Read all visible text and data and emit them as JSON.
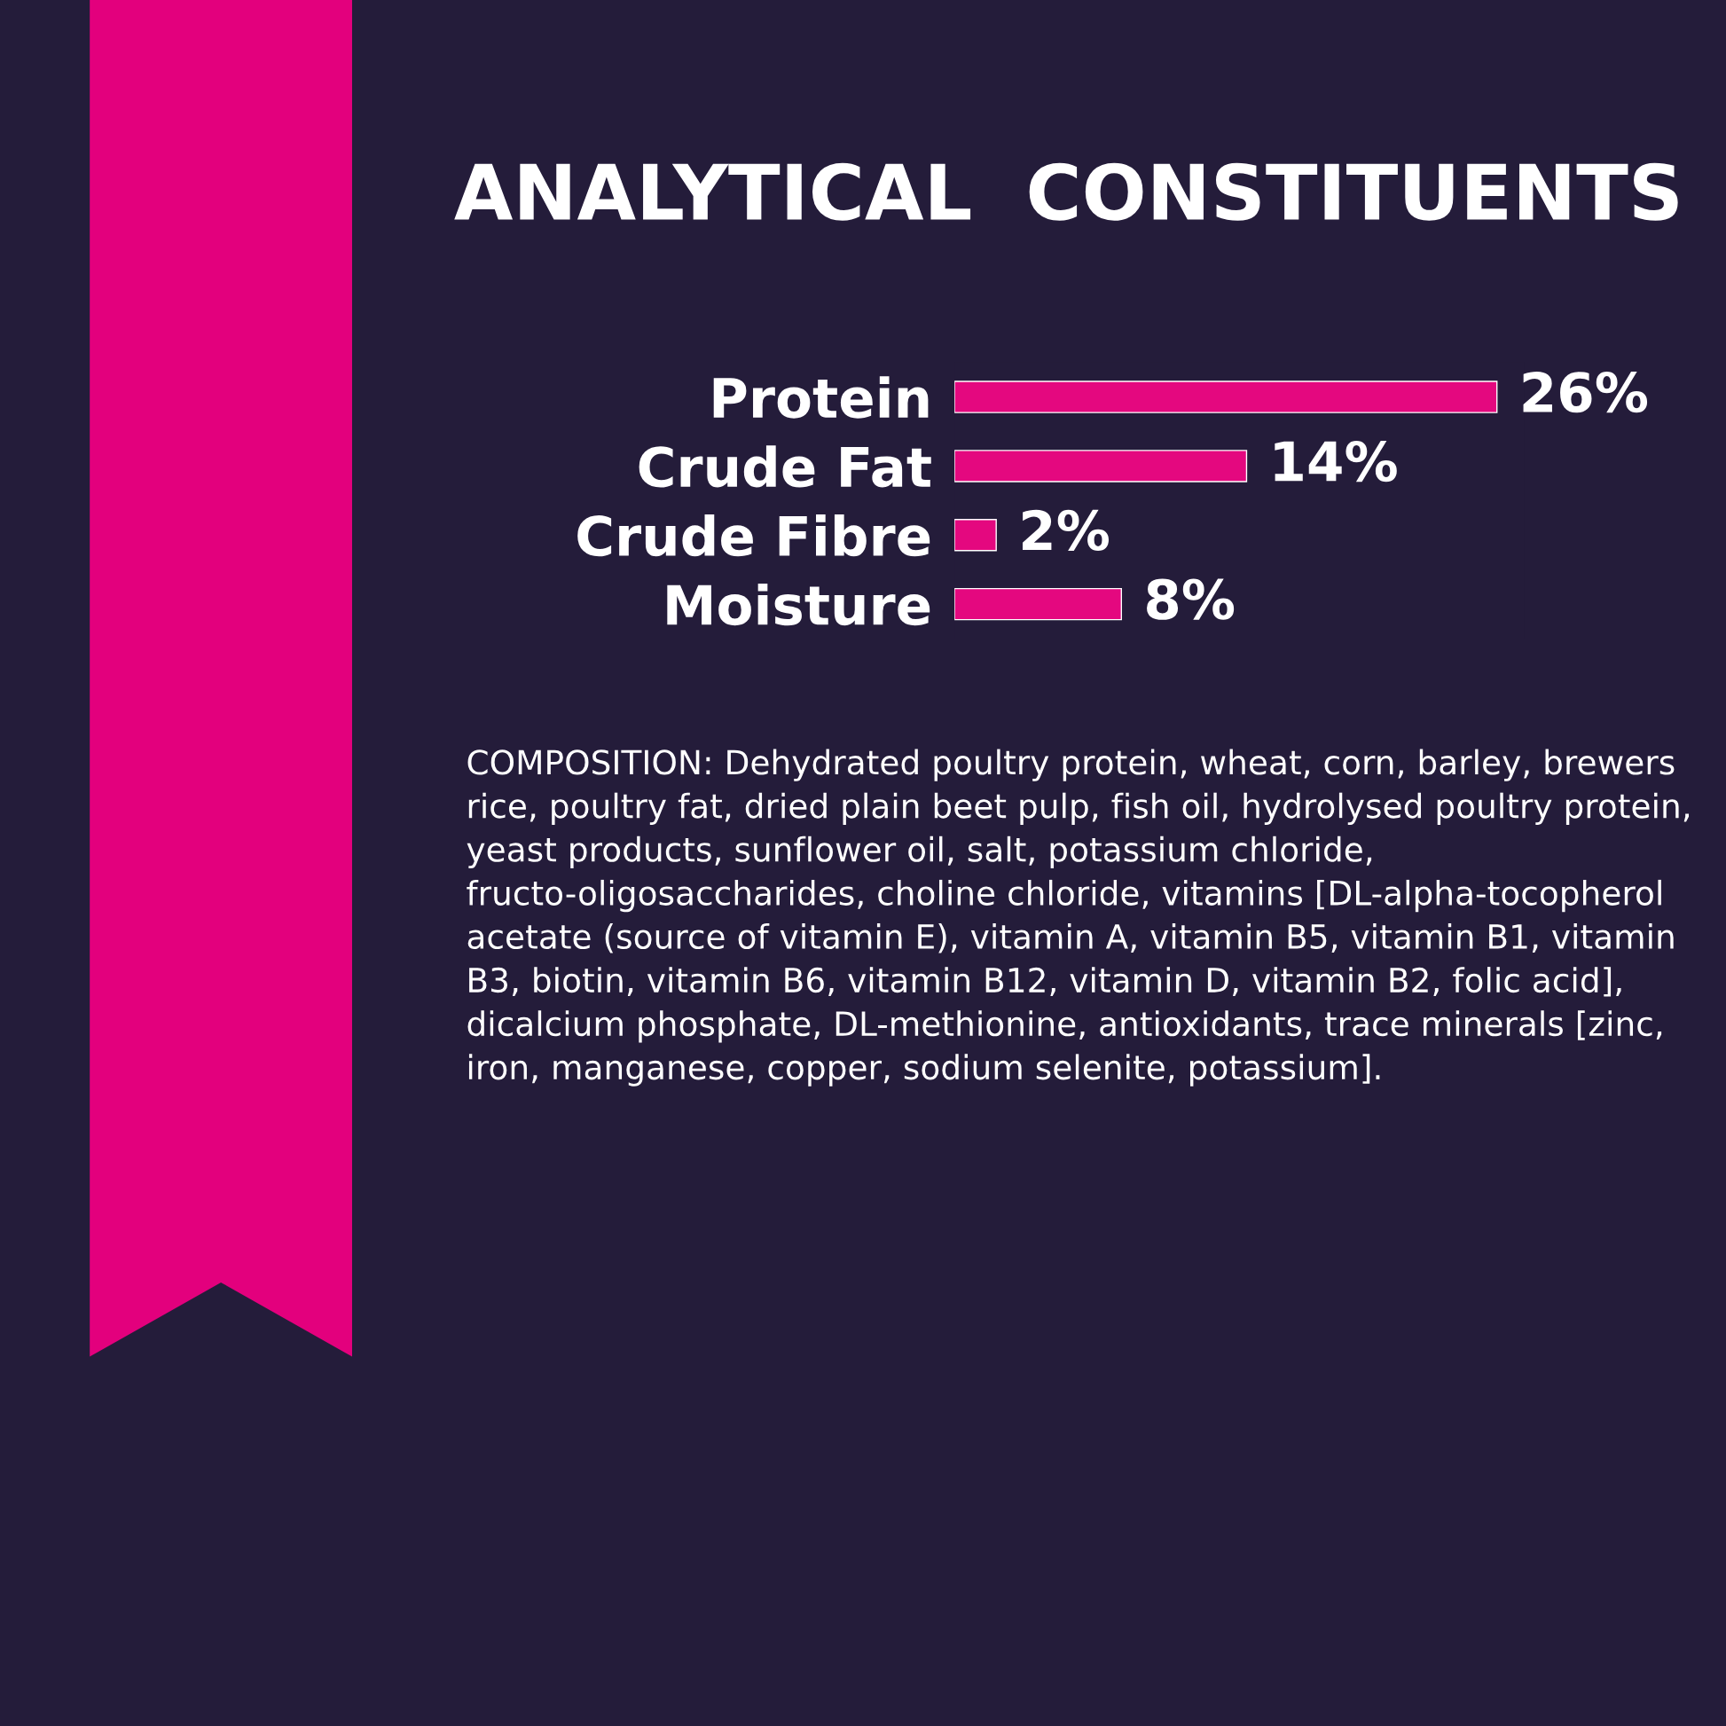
{
  "chart_data": {
    "type": "bar",
    "orientation": "horizontal",
    "title": "ANALYTICAL  CONSTITUENTS",
    "categories": [
      "Protein",
      "Crude Fat",
      "Crude Fibre",
      "Moisture"
    ],
    "values": [
      26,
      14,
      2,
      8
    ],
    "color": "#e4087f",
    "value_labels": [
      "26%",
      "14%",
      "2%",
      "8%"
    ],
    "annotations": [
      "COMPOSITION: Dehydrated poultry protein, wheat, corn, barley, brewers rice, poultry fat, dried plain beet pulp, fish oil, hydrolysed poultry protein, yeast products, sunflower oil, salt, potassium chloride, fructo-oligosaccharides, choline chloride, vitamins [DL-alpha-tocopherol acetate (source of vitamin E), vitamin A, vitamin B5, vitamin B1, vitamin B3, biotin, vitamin B6, vitamin B12, vitamin D, vitamin B2, folic acid], dicalcium phosphate, DL-methionine, antioxidants, trace minerals [zinc, iron, manganese, copper, sodium selenite, potassium]."
    ],
    "tick_labels": "y",
    "grid": false,
    "legend": false
  }
}
